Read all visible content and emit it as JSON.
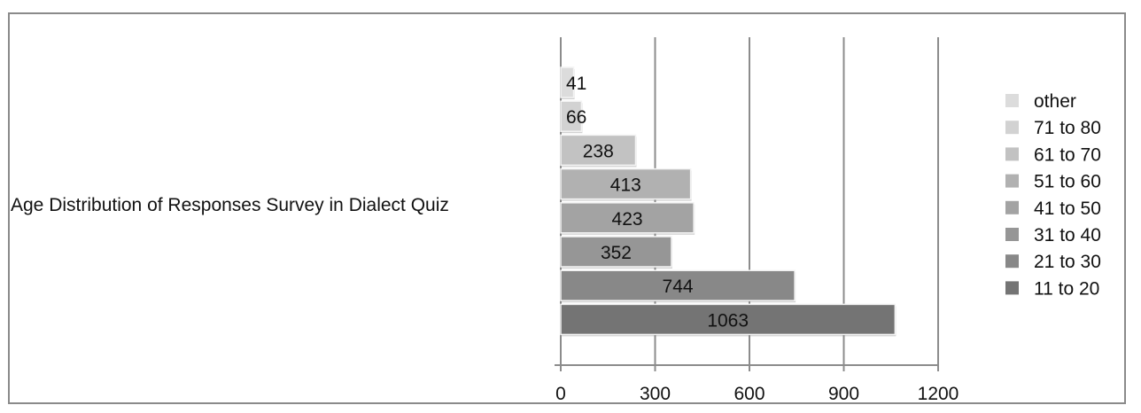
{
  "chart_data": {
    "type": "bar",
    "orientation": "horizontal",
    "category_label": "Age Distribution of Responses Survey in Dialect Quiz",
    "series": [
      {
        "name": "other",
        "value": 41,
        "color": "#dcdcdc"
      },
      {
        "name": "71 to 80",
        "value": 66,
        "color": "#d2d2d2"
      },
      {
        "name": "61 to 70",
        "value": 238,
        "color": "#c2c2c2"
      },
      {
        "name": "51 to 60",
        "value": 413,
        "color": "#b1b1b1"
      },
      {
        "name": "41 to 50",
        "value": 423,
        "color": "#a3a3a3"
      },
      {
        "name": "31 to 40",
        "value": 352,
        "color": "#969696"
      },
      {
        "name": "21 to 30",
        "value": 744,
        "color": "#888888"
      },
      {
        "name": "11 to 20",
        "value": 1063,
        "color": "#747474"
      }
    ],
    "xlim": [
      0,
      1200
    ],
    "xticks": [
      "0",
      "300",
      "600",
      "900",
      "1200"
    ],
    "grid": true,
    "legend_position": "right"
  }
}
